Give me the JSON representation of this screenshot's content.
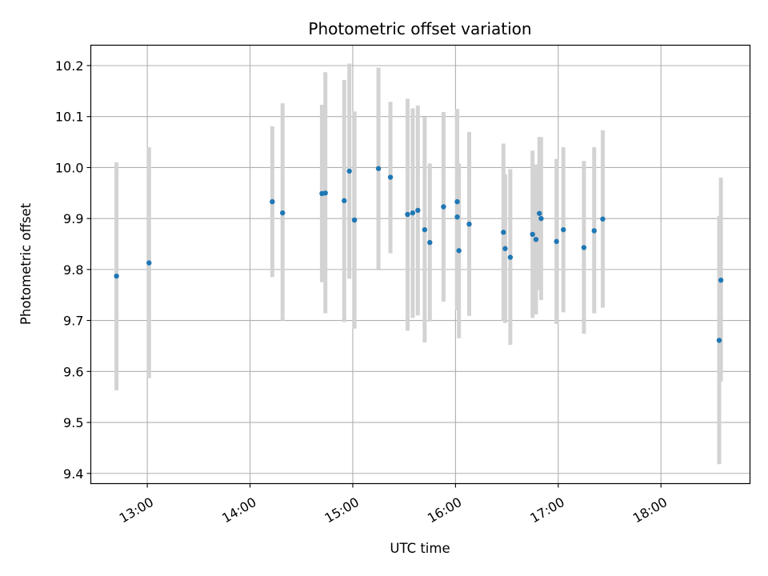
{
  "chart_data": {
    "type": "scatter",
    "title": "Photometric offset variation",
    "xlabel": "UTC time",
    "ylabel": "Photometric offset",
    "x_axis_type": "time",
    "xlim": [
      "12:27",
      "18:52"
    ],
    "ylim": [
      9.38,
      10.24
    ],
    "x_ticks": [
      "13:00",
      "14:00",
      "15:00",
      "16:00",
      "17:00",
      "18:00"
    ],
    "y_ticks": [
      "9.4",
      "9.5",
      "9.6",
      "9.7",
      "9.8",
      "9.9",
      "10.0",
      "10.1",
      "10.2"
    ],
    "grid": true,
    "legend": "none",
    "colors": {
      "marker": "#1f77b4",
      "errorbar": "#d3d3d3",
      "grid": "#b0b0b0"
    },
    "points": [
      {
        "x": "12:42",
        "y": 9.787,
        "y_low": 9.563,
        "y_high": 10.01
      },
      {
        "x": "13:01",
        "y": 9.813,
        "y_low": 9.587,
        "y_high": 10.04
      },
      {
        "x": "14:13",
        "y": 9.933,
        "y_low": 9.785,
        "y_high": 10.081
      },
      {
        "x": "14:19",
        "y": 9.911,
        "y_low": 9.7,
        "y_high": 10.126
      },
      {
        "x": "14:42",
        "y": 9.949,
        "y_low": 9.775,
        "y_high": 10.123
      },
      {
        "x": "14:44",
        "y": 9.95,
        "y_low": 9.714,
        "y_high": 10.187
      },
      {
        "x": "14:55",
        "y": 9.935,
        "y_low": 9.697,
        "y_high": 10.172
      },
      {
        "x": "14:58",
        "y": 9.993,
        "y_low": 9.782,
        "y_high": 10.204
      },
      {
        "x": "15:01",
        "y": 9.897,
        "y_low": 9.684,
        "y_high": 10.11
      },
      {
        "x": "15:15",
        "y": 9.998,
        "y_low": 9.801,
        "y_high": 10.196
      },
      {
        "x": "15:22",
        "y": 9.981,
        "y_low": 9.832,
        "y_high": 10.129
      },
      {
        "x": "15:32",
        "y": 9.908,
        "y_low": 9.68,
        "y_high": 10.135
      },
      {
        "x": "15:35",
        "y": 9.911,
        "y_low": 9.705,
        "y_high": 10.116
      },
      {
        "x": "15:38",
        "y": 9.916,
        "y_low": 9.71,
        "y_high": 10.122
      },
      {
        "x": "15:42",
        "y": 9.878,
        "y_low": 9.657,
        "y_high": 10.099
      },
      {
        "x": "15:45",
        "y": 9.853,
        "y_low": 9.698,
        "y_high": 10.008
      },
      {
        "x": "15:53",
        "y": 9.923,
        "y_low": 9.737,
        "y_high": 10.109
      },
      {
        "x": "16:01",
        "y": 9.933,
        "y_low": 9.75,
        "y_high": 10.115
      },
      {
        "x": "16:01",
        "y": 9.903,
        "y_low": 9.72,
        "y_high": 10.086
      },
      {
        "x": "16:02",
        "y": 9.837,
        "y_low": 9.665,
        "y_high": 10.008
      },
      {
        "x": "16:08",
        "y": 9.889,
        "y_low": 9.709,
        "y_high": 10.07
      },
      {
        "x": "16:28",
        "y": 9.873,
        "y_low": 9.7,
        "y_high": 10.047
      },
      {
        "x": "16:29",
        "y": 9.841,
        "y_low": 9.695,
        "y_high": 9.987
      },
      {
        "x": "16:32",
        "y": 9.824,
        "y_low": 9.652,
        "y_high": 9.997
      },
      {
        "x": "16:45",
        "y": 9.869,
        "y_low": 9.705,
        "y_high": 10.033
      },
      {
        "x": "16:47",
        "y": 9.859,
        "y_low": 9.712,
        "y_high": 10.006
      },
      {
        "x": "16:49",
        "y": 9.91,
        "y_low": 9.76,
        "y_high": 10.06
      },
      {
        "x": "16:50",
        "y": 9.9,
        "y_low": 9.74,
        "y_high": 10.06
      },
      {
        "x": "16:59",
        "y": 9.855,
        "y_low": 9.693,
        "y_high": 10.017
      },
      {
        "x": "17:03",
        "y": 9.878,
        "y_low": 9.716,
        "y_high": 10.04
      },
      {
        "x": "17:15",
        "y": 9.843,
        "y_low": 9.674,
        "y_high": 10.013
      },
      {
        "x": "17:21",
        "y": 9.876,
        "y_low": 9.714,
        "y_high": 10.04
      },
      {
        "x": "17:26",
        "y": 9.899,
        "y_low": 9.725,
        "y_high": 10.073
      },
      {
        "x": "18:34",
        "y": 9.661,
        "y_low": 9.418,
        "y_high": 9.905
      },
      {
        "x": "18:35",
        "y": 9.779,
        "y_low": 9.58,
        "y_high": 9.98
      }
    ]
  }
}
